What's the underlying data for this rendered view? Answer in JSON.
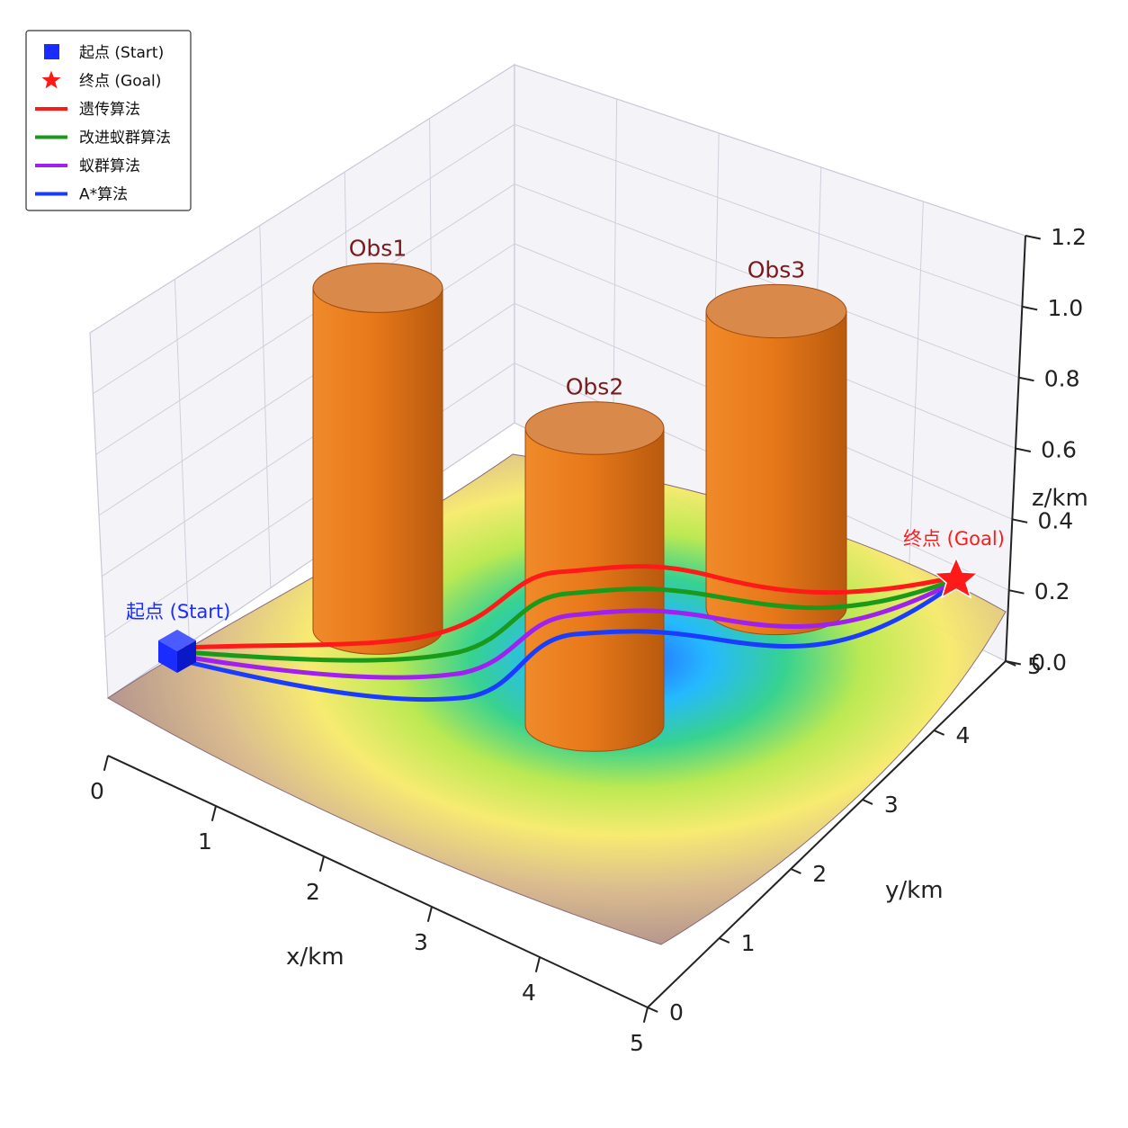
{
  "chart_data": {
    "type": "3d-surface-path",
    "xlabel": "x/km",
    "ylabel": "y/km",
    "zlabel": "z/km",
    "x_ticks": [
      "0",
      "1",
      "2",
      "3",
      "4",
      "5"
    ],
    "y_ticks": [
      "0",
      "1",
      "2",
      "3",
      "4",
      "5"
    ],
    "z_ticks": [
      "0.0",
      "0.2",
      "0.4",
      "0.6",
      "0.8",
      "1.0",
      "1.2"
    ],
    "xlim": [
      0,
      5
    ],
    "ylim": [
      0,
      5
    ],
    "zlim": [
      0,
      1.2
    ],
    "grid": true,
    "legend_placement": "top-left",
    "legend": [
      {
        "label": "起点 (Start)",
        "marker": "square",
        "color": "#1a2cff"
      },
      {
        "label": "终点 (Goal)",
        "marker": "star",
        "color": "#ff1a1a"
      },
      {
        "label": "遗传算法",
        "marker": "line",
        "color": "#ff1a1a"
      },
      {
        "label": "改进蚁群算法",
        "marker": "line",
        "color": "#1a9a1a"
      },
      {
        "label": "蚁群算法",
        "marker": "line",
        "color": "#a020f0"
      },
      {
        "label": "A*算法",
        "marker": "line",
        "color": "#1a3cff"
      }
    ],
    "start": {
      "label": "起点 (Start)",
      "x": 0.3,
      "y": 4.5,
      "z": 0.2,
      "color": "#1a2cff"
    },
    "goal": {
      "label": "终点 (Goal)",
      "x": 4.6,
      "y": 4.7,
      "z": 0.25,
      "color": "#ff1a1a"
    },
    "obstacles": [
      {
        "label": "Obs1",
        "x": 1.6,
        "y": 4.3,
        "radius": 0.35,
        "height": 1.1
      },
      {
        "label": "Obs2",
        "x": 2.4,
        "y": 3.4,
        "radius": 0.38,
        "height": 0.85
      },
      {
        "label": "Obs3",
        "x": 3.2,
        "y": 4.6,
        "radius": 0.38,
        "height": 1.1
      }
    ],
    "series": [
      {
        "name": "遗传算法",
        "color": "#ff1a1a"
      },
      {
        "name": "改进蚁群算法",
        "color": "#1a9a1a"
      },
      {
        "name": "蚁群算法",
        "color": "#a020f0"
      },
      {
        "name": "A*算法",
        "color": "#1a3cff"
      }
    ],
    "colors": {
      "obstacle": "#e8791a",
      "obstacle_top": "#d98a4a",
      "surface_low": "#1aa8ff",
      "surface_mid": "#f2e84a",
      "surface_high": "#9b7a86"
    }
  }
}
